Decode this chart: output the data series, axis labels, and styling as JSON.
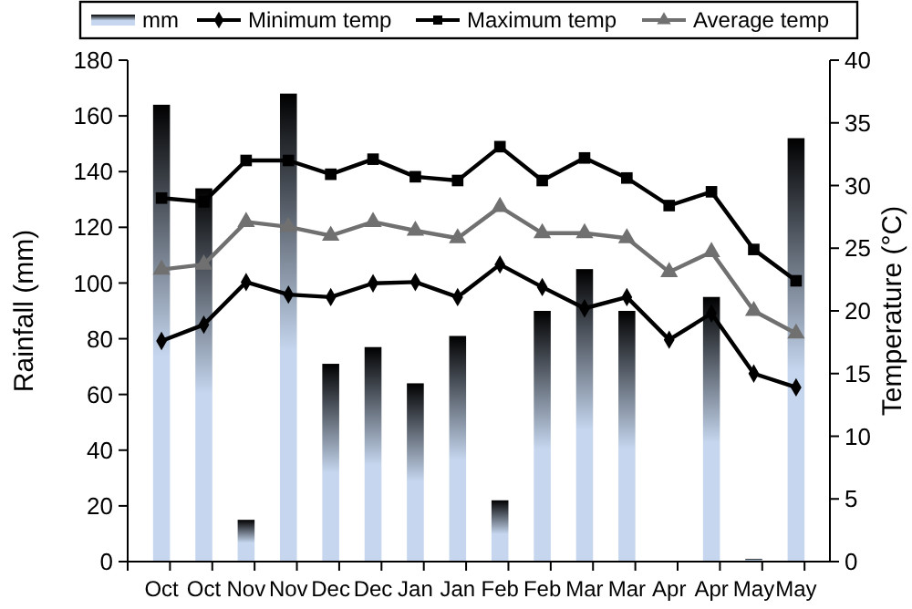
{
  "chart_data": {
    "type": "bar",
    "ylabel": "Rainfall (mm)",
    "y2label": "Temperature (°C)",
    "categories": [
      "Oct",
      "Oct",
      "Nov",
      "Nov",
      "Dec",
      "Dec",
      "Jan",
      "Jan",
      "Feb",
      "Feb",
      "Mar",
      "Mar",
      "Apr",
      "Apr",
      "May",
      "May"
    ],
    "series": [
      {
        "name": "mm",
        "color": "#c5d6ee",
        "values": [
          164,
          134,
          15,
          168,
          71,
          77,
          64,
          81,
          22,
          90,
          105,
          90,
          0,
          95,
          1,
          152
        ]
      },
      {
        "name": "Minimum temp",
        "type": "line",
        "axis": "y2",
        "color": "#000000",
        "marker": "diamond",
        "values": [
          17.6,
          18.9,
          22.3,
          21.3,
          21.1,
          22.2,
          22.3,
          21.1,
          23.7,
          21.9,
          20.2,
          21.1,
          17.7,
          19.8,
          15,
          13.9
        ]
      },
      {
        "name": "Maximum temp",
        "type": "line",
        "axis": "y2",
        "color": "#000000",
        "marker": "square",
        "values": [
          29,
          28.7,
          32,
          32,
          30.9,
          32.1,
          30.7,
          30.4,
          33.1,
          30.4,
          32.2,
          30.6,
          28.4,
          29.5,
          24.9,
          22.4
        ]
      },
      {
        "name": "Average temp",
        "type": "line",
        "axis": "y2",
        "color": "#707070",
        "marker": "triangle",
        "values": [
          23.3,
          23.7,
          27.1,
          26.7,
          26,
          27.1,
          26.4,
          25.8,
          28.3,
          26.2,
          26.2,
          25.8,
          23.1,
          24.7,
          20,
          18.2
        ]
      }
    ],
    "ylim": [
      0,
      180
    ],
    "yticks": [
      0,
      20,
      40,
      60,
      80,
      100,
      120,
      140,
      160,
      180
    ],
    "y2lim": [
      0,
      40
    ],
    "y2ticks": [
      0,
      5,
      10,
      15,
      20,
      25,
      30,
      35,
      40
    ],
    "legend": "top",
    "grid": false
  }
}
